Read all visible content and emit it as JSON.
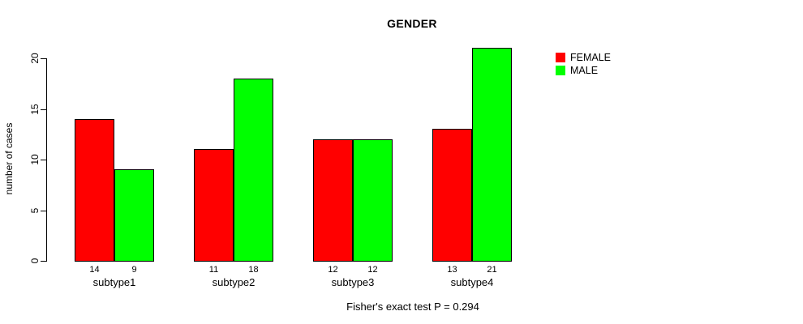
{
  "chart_data": {
    "type": "bar",
    "title": "GENDER",
    "ylabel": "number of cases",
    "xlabel": "",
    "categories": [
      "subtype1",
      "subtype2",
      "subtype3",
      "subtype4"
    ],
    "series": [
      {
        "name": "FEMALE",
        "color": "#FF0000",
        "values": [
          14,
          11,
          12,
          13
        ]
      },
      {
        "name": "MALE",
        "color": "#00FF00",
        "values": [
          9,
          18,
          12,
          21
        ]
      }
    ],
    "yticks": [
      0,
      5,
      10,
      15,
      20
    ],
    "ylim": [
      0,
      20
    ],
    "grid": false,
    "bar_value_labels": true,
    "legend_position": "top-right",
    "footnote": "Fisher's exact test P = 0.294"
  }
}
